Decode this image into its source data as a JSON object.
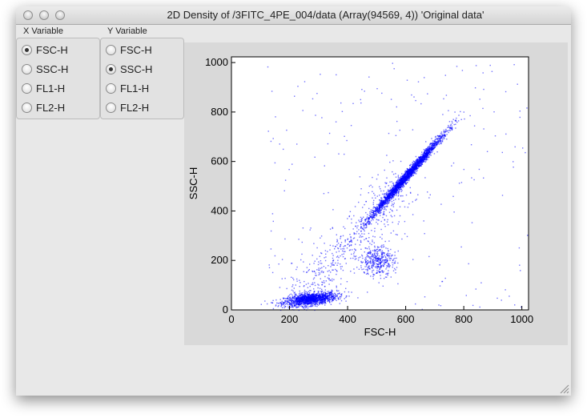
{
  "window": {
    "title": "2D Density of /3FITC_4PE_004/data (Array(94569, 4)) 'Original data'"
  },
  "x_group": {
    "label": "X Variable",
    "options": [
      "FSC-H",
      "SSC-H",
      "FL1-H",
      "FL2-H"
    ],
    "selected": "FSC-H"
  },
  "y_group": {
    "label": "Y Variable",
    "options": [
      "FSC-H",
      "SSC-H",
      "FL1-H",
      "FL2-H"
    ],
    "selected": "SSC-H"
  },
  "chart_data": {
    "type": "scatter",
    "xlabel": "FSC-H",
    "ylabel": "SSC-H",
    "xlim": [
      0,
      1023
    ],
    "ylim": [
      0,
      1023
    ],
    "xticks": [
      0,
      200,
      400,
      600,
      800,
      1000
    ],
    "yticks": [
      0,
      200,
      400,
      600,
      800,
      1000
    ],
    "grid": false,
    "point_color": "#0000ff",
    "clusters": [
      {
        "center": [
          270,
          45
        ],
        "spread": [
          45,
          12
        ],
        "count": 1400
      },
      {
        "center": [
          600,
          540
        ],
        "spread": [
          70,
          95
        ],
        "count": 2400
      },
      {
        "center": [
          500,
          200
        ],
        "spread": [
          30,
          30
        ],
        "count": 380
      }
    ]
  }
}
